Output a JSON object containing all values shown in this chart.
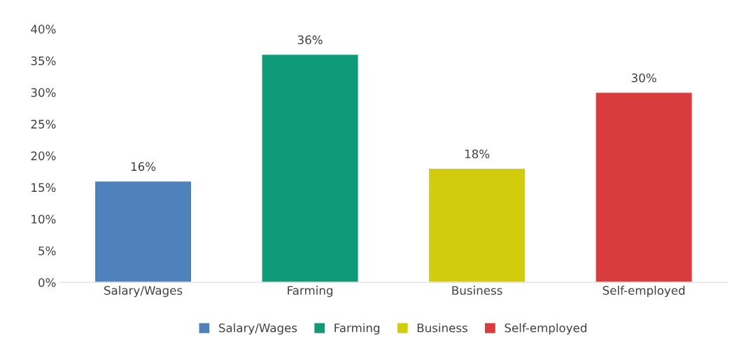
{
  "chart_data": {
    "type": "bar",
    "categories": [
      "Salary/Wages",
      "Farming",
      "Business",
      "Self-employed"
    ],
    "series": [
      {
        "name": "Salary/Wages",
        "color": "#4f81bd",
        "values": [
          16,
          null,
          null,
          null
        ],
        "value_labels": [
          "16%",
          null,
          null,
          null
        ]
      },
      {
        "name": "Farming",
        "color": "#0f9a78",
        "values": [
          null,
          36,
          null,
          null
        ],
        "value_labels": [
          null,
          "36%",
          null,
          null
        ]
      },
      {
        "name": "Business",
        "color": "#d2cc0e",
        "values": [
          null,
          null,
          18,
          null
        ],
        "value_labels": [
          null,
          null,
          "18%",
          null
        ]
      },
      {
        "name": "Self-employed",
        "color": "#d83c3c",
        "values": [
          null,
          null,
          null,
          30
        ],
        "value_labels": [
          null,
          null,
          null,
          "30%"
        ]
      }
    ],
    "ylim": [
      0,
      40
    ],
    "yticks": [
      {
        "value": 0,
        "label": "0%"
      },
      {
        "value": 5,
        "label": "5%"
      },
      {
        "value": 10,
        "label": "10%"
      },
      {
        "value": 15,
        "label": "15%"
      },
      {
        "value": 20,
        "label": "20%"
      },
      {
        "value": 25,
        "label": "25%"
      },
      {
        "value": 30,
        "label": "30%"
      },
      {
        "value": 35,
        "label": "35%"
      },
      {
        "value": 40,
        "label": "40%"
      }
    ],
    "grid": false,
    "legend": "bottom"
  }
}
